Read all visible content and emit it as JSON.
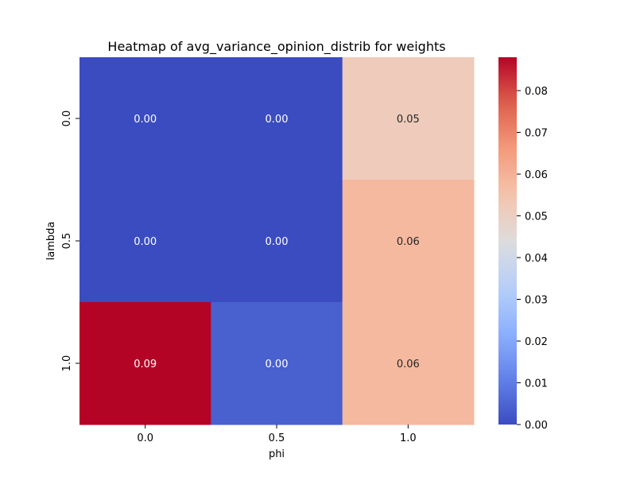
{
  "chart_data": {
    "type": "heatmap",
    "title": "Heatmap of avg_variance_opinion_distrib for weights",
    "xlabel": "phi",
    "ylabel": "lambda",
    "x_categories": [
      "0.0",
      "0.5",
      "1.0"
    ],
    "y_categories": [
      "0.0",
      "0.5",
      "1.0"
    ],
    "values": [
      [
        0.0,
        0.0,
        0.052
      ],
      [
        0.0,
        0.0,
        0.058
      ],
      [
        0.088,
        0.004,
        0.058
      ]
    ],
    "annotations": [
      [
        "0.00",
        "0.00",
        "0.05"
      ],
      [
        "0.00",
        "0.00",
        "0.06"
      ],
      [
        "0.09",
        "0.00",
        "0.06"
      ]
    ],
    "colormap": "coolwarm",
    "color_range": [
      0.0,
      0.088
    ],
    "colorbar_ticks": [
      {
        "value": 0.0,
        "label": "0.00"
      },
      {
        "value": 0.01,
        "label": "0.01"
      },
      {
        "value": 0.02,
        "label": "0.02"
      },
      {
        "value": 0.03,
        "label": "0.03"
      },
      {
        "value": 0.04,
        "label": "0.04"
      },
      {
        "value": 0.05,
        "label": "0.05"
      },
      {
        "value": 0.06,
        "label": "0.06"
      },
      {
        "value": 0.07,
        "label": "0.07"
      },
      {
        "value": 0.08,
        "label": "0.08"
      }
    ],
    "colors": {
      "low": "#3b4cc0",
      "mid": "#dddcdc",
      "high": "#b40426"
    }
  }
}
